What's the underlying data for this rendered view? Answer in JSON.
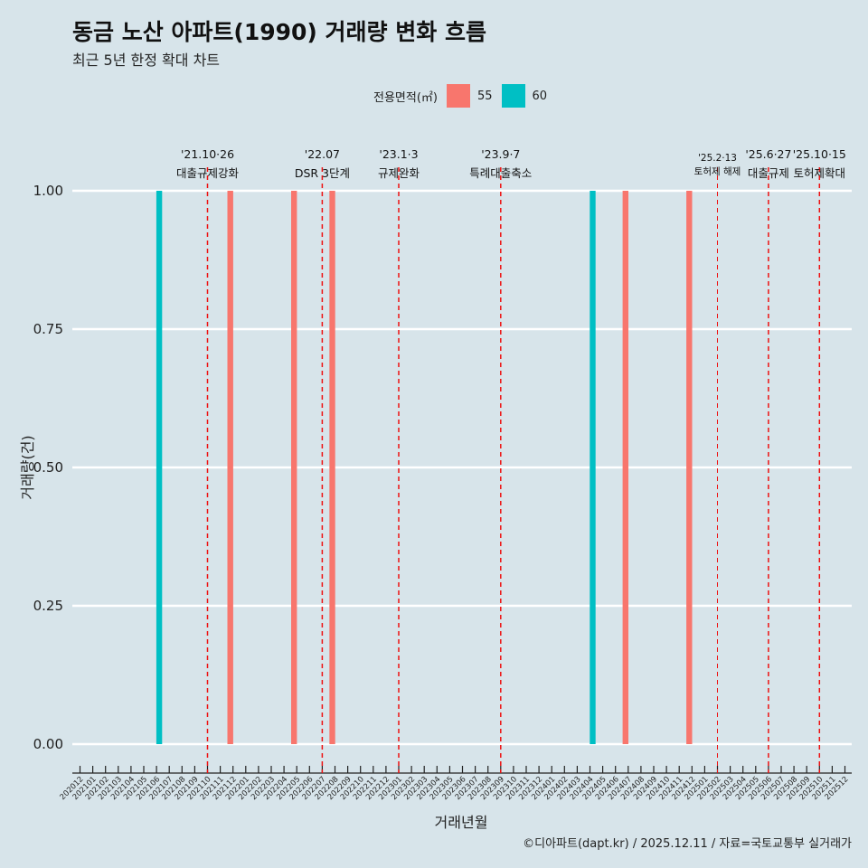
{
  "title": "동금 노산 아파트(1990) 거래량 변화 흐름",
  "subtitle": "최근 5년 한정 확대 차트",
  "caption": "©디아파트(dapt.kr) / 2025.12.11 / 자료=국토교통부 실거래가",
  "chart_data": {
    "type": "bar",
    "xlabel": "거래년월",
    "ylabel": "거래량(건)",
    "ylim": [
      0,
      1
    ],
    "yticks": [
      "0.00",
      "0.25",
      "0.50",
      "0.75",
      "1.00"
    ],
    "legend": {
      "title": "전용면적(㎡)",
      "position": "top",
      "entries": [
        {
          "name": "55",
          "color": "#f8766d"
        },
        {
          "name": "60",
          "color": "#00bfc4"
        }
      ]
    },
    "categories": [
      "202012",
      "202101",
      "202102",
      "202103",
      "202104",
      "202105",
      "202106",
      "202107",
      "202108",
      "202109",
      "202110",
      "202111",
      "202112",
      "202201",
      "202202",
      "202203",
      "202204",
      "202205",
      "202206",
      "202207",
      "202208",
      "202209",
      "202210",
      "202211",
      "202212",
      "202301",
      "202302",
      "202303",
      "202304",
      "202305",
      "202306",
      "202307",
      "202308",
      "202309",
      "202310",
      "202311",
      "202312",
      "202401",
      "202402",
      "202403",
      "202404",
      "202405",
      "202406",
      "202407",
      "202408",
      "202409",
      "202410",
      "202411",
      "202412",
      "202501",
      "202502",
      "202503",
      "202504",
      "202505",
      "202506",
      "202507",
      "202508",
      "202509",
      "202510",
      "202511",
      "202512"
    ],
    "series": [
      {
        "name": "55",
        "points": [
          {
            "x": "202112",
            "y": 1
          },
          {
            "x": "202205",
            "y": 1
          },
          {
            "x": "202208",
            "y": 1
          },
          {
            "x": "202407",
            "y": 1
          },
          {
            "x": "202412",
            "y": 1
          }
        ]
      },
      {
        "name": "60",
        "points": [
          {
            "x": "202106",
            "y": 1
          },
          {
            "x": "202404",
            "y": 1
          }
        ]
      }
    ],
    "annotations": [
      {
        "x": "202110",
        "date": "'21.10·26",
        "label": "대출규제강화"
      },
      {
        "x": "202207",
        "date": "'22.07",
        "label": "DSR 3단계"
      },
      {
        "x": "202301",
        "date": "'23.1·3",
        "label": "규제완화"
      },
      {
        "x": "202309",
        "date": "'23.9·7",
        "label": "특례대출축소"
      },
      {
        "x": "202502",
        "date": "'25.2·13",
        "label": "토허제 해제",
        "small": true
      },
      {
        "x": "202506",
        "date": "'25.6·27",
        "label": "대출규제"
      },
      {
        "x": "202510",
        "date": "'25.10·15",
        "label": "토허제확대"
      }
    ]
  }
}
